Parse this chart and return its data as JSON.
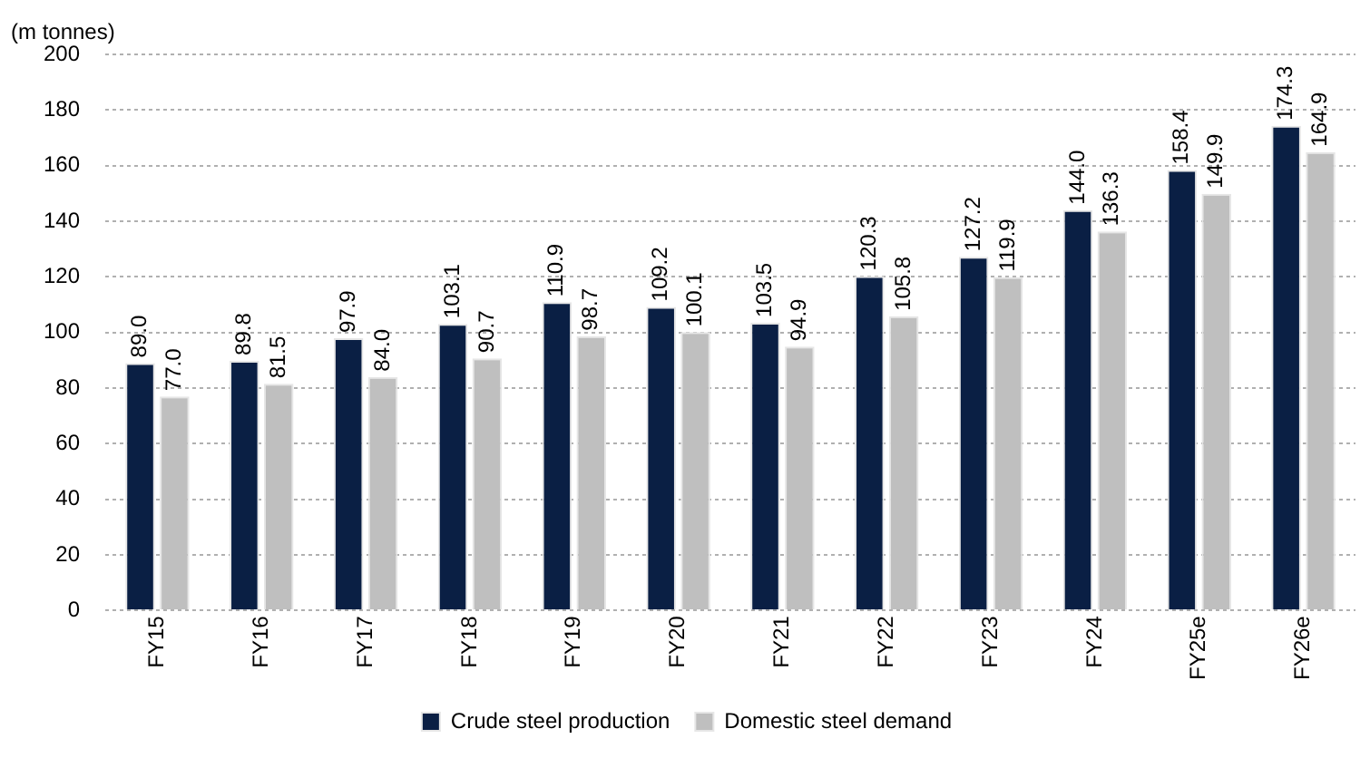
{
  "chart_data": {
    "type": "bar",
    "ylabel": "(m tonnes)",
    "categories": [
      "FY15",
      "FY16",
      "FY17",
      "FY18",
      "FY19",
      "FY20",
      "FY21",
      "FY22",
      "FY23",
      "FY24",
      "FY25e",
      "FY26e"
    ],
    "series": [
      {
        "name": "Crude steel production",
        "color": "#0a1f44",
        "values": [
          89.0,
          89.8,
          97.9,
          103.1,
          110.9,
          109.2,
          103.5,
          120.3,
          127.2,
          144.0,
          158.4,
          174.3
        ],
        "value_labels": [
          "89.0",
          "89.8",
          "97.9",
          "103.1",
          "110.9",
          "109.2",
          "103.5",
          "120.3",
          "127.2",
          "144.0",
          "158.4",
          "174.3"
        ]
      },
      {
        "name": "Domestic steel demand",
        "color": "#bfbfbf",
        "values": [
          77.0,
          81.5,
          84.0,
          90.7,
          98.7,
          100.1,
          94.9,
          105.8,
          119.9,
          136.3,
          149.9,
          164.9
        ],
        "value_labels": [
          "77.0",
          "81.5",
          "84.0",
          "90.7",
          "98.7",
          "100.1",
          "94.9",
          "105.8",
          "119.9",
          "136.3",
          "149.9",
          "164.9"
        ]
      }
    ],
    "ylim": [
      0,
      200
    ],
    "yticks": [
      0,
      20,
      40,
      60,
      80,
      100,
      120,
      140,
      160,
      180,
      200
    ],
    "grid": "y",
    "legend": "bottom"
  }
}
